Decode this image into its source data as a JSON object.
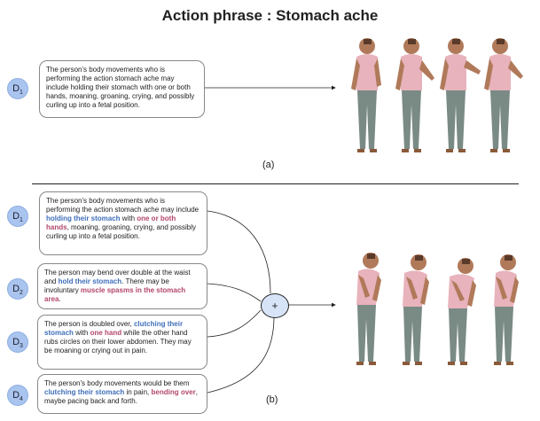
{
  "title": "Action phrase : Stomach ache",
  "part_a": {
    "label_main": "D",
    "label_sub": "1",
    "text": "The person's body movements who is performing the action stomach ache may include holding their stomach with one or both hands, moaning, groaning, crying, and possibly curling up into a fetal position.",
    "caption": "(a)"
  },
  "part_b": {
    "caption": "(b)",
    "plus": "+",
    "d1": {
      "label_main": "D",
      "label_sub": "1",
      "t1": "The person's body movements who is performing the action stomach ache may include ",
      "h1": "holding their stomach",
      "t2": " with ",
      "h2": "one or both hands",
      "t3": ", moaning, groaning, crying, and possibly curling up into a fetal position."
    },
    "d2": {
      "label_main": "D",
      "label_sub": "2",
      "t1": "The person may bend over double at the waist and ",
      "h1": "hold their stomach",
      "t2": ". There may be involuntary ",
      "h2": "muscle spasms in the stomach area",
      "t3": "."
    },
    "d3": {
      "label_main": "D",
      "label_sub": "3",
      "t1": "The person is doubled over, ",
      "h1": "clutching their stomach",
      "t2": " with ",
      "h2": "one hand",
      "t3": " while the other hand rubs circles on their lower abdomen. They may be moaning or crying out in pain."
    },
    "d4": {
      "label_main": "D",
      "label_sub": "4",
      "t1": "The person's body movements would be them ",
      "h1": "clutching their stomach",
      "t2": " in pain, ",
      "h2": "bending over",
      "t3": ", maybe pacing back and forth."
    }
  },
  "colors": {
    "highlight_blue": "#3f6fb9",
    "highlight_pink": "#b3466e",
    "label_circle": "#a9c4ee",
    "plus_circle": "#d7e4f8",
    "figure_shirt": "#e8b3bc",
    "figure_pants": "#7a8a85",
    "figure_skin": "#b07a5a"
  }
}
